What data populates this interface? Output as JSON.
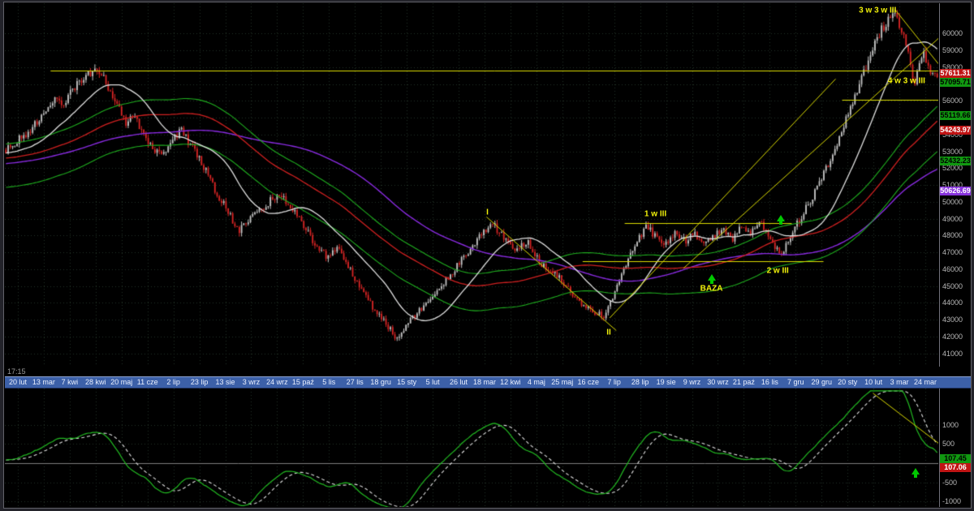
{
  "meta": {
    "last_time": "17:15"
  },
  "chart_data": {
    "type": "candlestick_with_indicator",
    "grid_color": "#223326",
    "annotation_color": "#dcdc00",
    "annotation_text_color": "#f0f00a",
    "x_axis": {
      "labels": [
        "20 lut",
        "13 mar",
        "7 kwi",
        "28 kwi",
        "20 maj",
        "11 cze",
        "2 lip",
        "23 lip",
        "13 sie",
        "3 wrz",
        "24 wrz",
        "15 paź",
        "5 lis",
        "27 lis",
        "18 gru",
        "15 sty",
        "5 lut",
        "26 lut",
        "18 mar",
        "12 kwi",
        "4 maj",
        "25 maj",
        "16 cze",
        "7 lip",
        "28 lip",
        "19 sie",
        "9 wrz",
        "30 wrz",
        "21 paź",
        "16 lis",
        "7 gru",
        "29 gru",
        "20 sty",
        "10 lut",
        "3 mar",
        "24 mar"
      ]
    },
    "main": {
      "price_range": [
        40400,
        61700
      ],
      "y_ticks": [
        60000,
        59000,
        58000,
        57000,
        56000,
        55000,
        54000,
        53000,
        52000,
        51000,
        50000,
        49000,
        48000,
        47000,
        46000,
        45000,
        44000,
        43000,
        42000,
        41000
      ],
      "candle_count": 420,
      "pre_candles": 130,
      "pre_trend": [
        51500,
        53050
      ],
      "up_color": "#c2c2c2",
      "down_color": "#d42424",
      "price_anchors": [
        [
          0.0,
          53100
        ],
        [
          0.012,
          53600
        ],
        [
          0.025,
          54200
        ],
        [
          0.04,
          55200
        ],
        [
          0.052,
          56200
        ],
        [
          0.062,
          55700
        ],
        [
          0.072,
          56800
        ],
        [
          0.085,
          57400
        ],
        [
          0.095,
          57800
        ],
        [
          0.105,
          57300
        ],
        [
          0.118,
          55900
        ],
        [
          0.128,
          54700
        ],
        [
          0.138,
          55100
        ],
        [
          0.148,
          53900
        ],
        [
          0.158,
          53200
        ],
        [
          0.168,
          52700
        ],
        [
          0.178,
          53800
        ],
        [
          0.188,
          54200
        ],
        [
          0.198,
          53400
        ],
        [
          0.21,
          52300
        ],
        [
          0.222,
          51000
        ],
        [
          0.235,
          49700
        ],
        [
          0.25,
          48300
        ],
        [
          0.262,
          49100
        ],
        [
          0.275,
          49600
        ],
        [
          0.288,
          50300
        ],
        [
          0.3,
          50100
        ],
        [
          0.315,
          49100
        ],
        [
          0.33,
          47600
        ],
        [
          0.345,
          46700
        ],
        [
          0.358,
          47200
        ],
        [
          0.372,
          45700
        ],
        [
          0.385,
          44500
        ],
        [
          0.398,
          43400
        ],
        [
          0.41,
          42600
        ],
        [
          0.42,
          41900
        ],
        [
          0.432,
          42800
        ],
        [
          0.445,
          43600
        ],
        [
          0.458,
          44300
        ],
        [
          0.472,
          45300
        ],
        [
          0.486,
          46300
        ],
        [
          0.5,
          47200
        ],
        [
          0.512,
          48200
        ],
        [
          0.522,
          48700
        ],
        [
          0.535,
          47900
        ],
        [
          0.548,
          47200
        ],
        [
          0.56,
          47700
        ],
        [
          0.575,
          46300
        ],
        [
          0.59,
          45800
        ],
        [
          0.603,
          44900
        ],
        [
          0.617,
          43900
        ],
        [
          0.63,
          43500
        ],
        [
          0.642,
          43200
        ],
        [
          0.652,
          44300
        ],
        [
          0.663,
          45800
        ],
        [
          0.675,
          47400
        ],
        [
          0.688,
          48600
        ],
        [
          0.698,
          47900
        ],
        [
          0.71,
          47500
        ],
        [
          0.72,
          48200
        ],
        [
          0.73,
          47700
        ],
        [
          0.74,
          48100
        ],
        [
          0.75,
          47400
        ],
        [
          0.76,
          47900
        ],
        [
          0.77,
          48400
        ],
        [
          0.78,
          47800
        ],
        [
          0.79,
          48500
        ],
        [
          0.8,
          48100
        ],
        [
          0.81,
          48700
        ],
        [
          0.818,
          48200
        ],
        [
          0.826,
          47300
        ],
        [
          0.833,
          46900
        ],
        [
          0.84,
          47600
        ],
        [
          0.848,
          48500
        ],
        [
          0.856,
          49300
        ],
        [
          0.865,
          50200
        ],
        [
          0.874,
          51100
        ],
        [
          0.883,
          52200
        ],
        [
          0.892,
          53400
        ],
        [
          0.9,
          54600
        ],
        [
          0.908,
          55700
        ],
        [
          0.916,
          56900
        ],
        [
          0.924,
          58100
        ],
        [
          0.932,
          59200
        ],
        [
          0.94,
          60200
        ],
        [
          0.948,
          60900
        ],
        [
          0.955,
          61200
        ],
        [
          0.962,
          60200
        ],
        [
          0.968,
          59000
        ],
        [
          0.975,
          56900
        ],
        [
          0.981,
          58500
        ],
        [
          0.986,
          58900
        ],
        [
          0.991,
          57900
        ],
        [
          0.996,
          57300
        ],
        [
          1.0,
          57650
        ]
      ],
      "moving_averages": [
        {
          "name": "ma-purple",
          "period": 130,
          "mult": 1.0,
          "color": "#8a2be2",
          "width": 1.4
        },
        {
          "name": "env-upper-green",
          "period": 75,
          "mult": 1.016,
          "color": "#1fae1f",
          "width": 1.1
        },
        {
          "name": "env-lower-green",
          "period": 75,
          "mult": 0.967,
          "color": "#1fae1f",
          "width": 1.1
        },
        {
          "name": "ma-red",
          "period": 75,
          "mult": 1.0,
          "color": "#d02020",
          "width": 1.3
        },
        {
          "name": "ma-white",
          "period": 25,
          "mult": 1.0,
          "color": "#e0e0e0",
          "width": 1.3
        }
      ],
      "badges": [
        {
          "text": "57611.31",
          "value": 57611.31,
          "bg": "#c01414",
          "fg": "#ffffff"
        },
        {
          "text": "57095.71",
          "value": 57095.71,
          "bg": "#109810",
          "fg": "#000000"
        },
        {
          "text": "55119.66",
          "value": 55119.66,
          "bg": "#109810",
          "fg": "#000000"
        },
        {
          "text": "54243.97",
          "value": 54243.97,
          "bg": "#c01414",
          "fg": "#ffffff"
        },
        {
          "text": "52432.23",
          "value": 52432.23,
          "bg": "#109810",
          "fg": "#000000"
        },
        {
          "text": "50626.69",
          "value": 50626.69,
          "bg": "#8833dd",
          "fg": "#ffffff"
        }
      ],
      "hlines": [
        {
          "price": 57800,
          "f1": 0.049,
          "f2": 1.0
        },
        {
          "price": 48750,
          "f1": 0.664,
          "f2": 0.843
        },
        {
          "price": 46450,
          "f1": 0.619,
          "f2": 0.877
        },
        {
          "price": 56050,
          "f1": 0.897,
          "f2": 1.0
        }
      ],
      "tlines": [
        {
          "f1": 0.516,
          "p1": 49100,
          "f2": 0.655,
          "p2": 42350
        },
        {
          "f1": 0.648,
          "p1": 43100,
          "f2": 0.89,
          "p2": 57300
        },
        {
          "f1": 0.727,
          "p1": 46050,
          "f2": 1.0,
          "p2": 59700
        },
        {
          "f1": 0.954,
          "p1": 61400,
          "f2": 1.0,
          "p2": 58200
        }
      ],
      "labels": [
        {
          "text": "3 w 3 w III",
          "f": 0.935,
          "price": 61350
        },
        {
          "text": "4 w 3 w III",
          "f": 0.966,
          "price": 57150
        },
        {
          "text": "1 w III",
          "f": 0.697,
          "price": 49250
        },
        {
          "text": "2 w III",
          "f": 0.828,
          "price": 45900
        },
        {
          "text": "I",
          "f": 0.517,
          "price": 49350
        },
        {
          "text": "II",
          "f": 0.647,
          "price": 42250
        },
        {
          "text": "BAZA",
          "f": 0.757,
          "price": 44850
        }
      ],
      "arrows": [
        {
          "f": 0.757,
          "price": 45650
        },
        {
          "f": 0.831,
          "price": 49150
        }
      ]
    },
    "indicator": {
      "range": [
        -1100,
        1900
      ],
      "clip": [
        -1280,
        1880
      ],
      "y_ticks": [
        1000,
        500,
        -500,
        -1000
      ],
      "fast_period": 8,
      "slow_period": 55,
      "scale": 0.3,
      "signal_period": 10,
      "line_color": "#22bb22",
      "signal_color": "#e0e0e0",
      "zero_line_color": "#7d7d7d",
      "badges": [
        {
          "text": "107.06",
          "value": 107.06,
          "bg": "#c01414",
          "fg": "#ffffff"
        },
        {
          "text": "107.45",
          "value": 107.45,
          "bg": "#109810",
          "fg": "#000000"
        }
      ],
      "tline": {
        "f1": 0.93,
        "v1": 1820,
        "f2": 1.0,
        "v2": 520
      },
      "arrow": {
        "f": 0.976,
        "value": -140
      }
    }
  }
}
